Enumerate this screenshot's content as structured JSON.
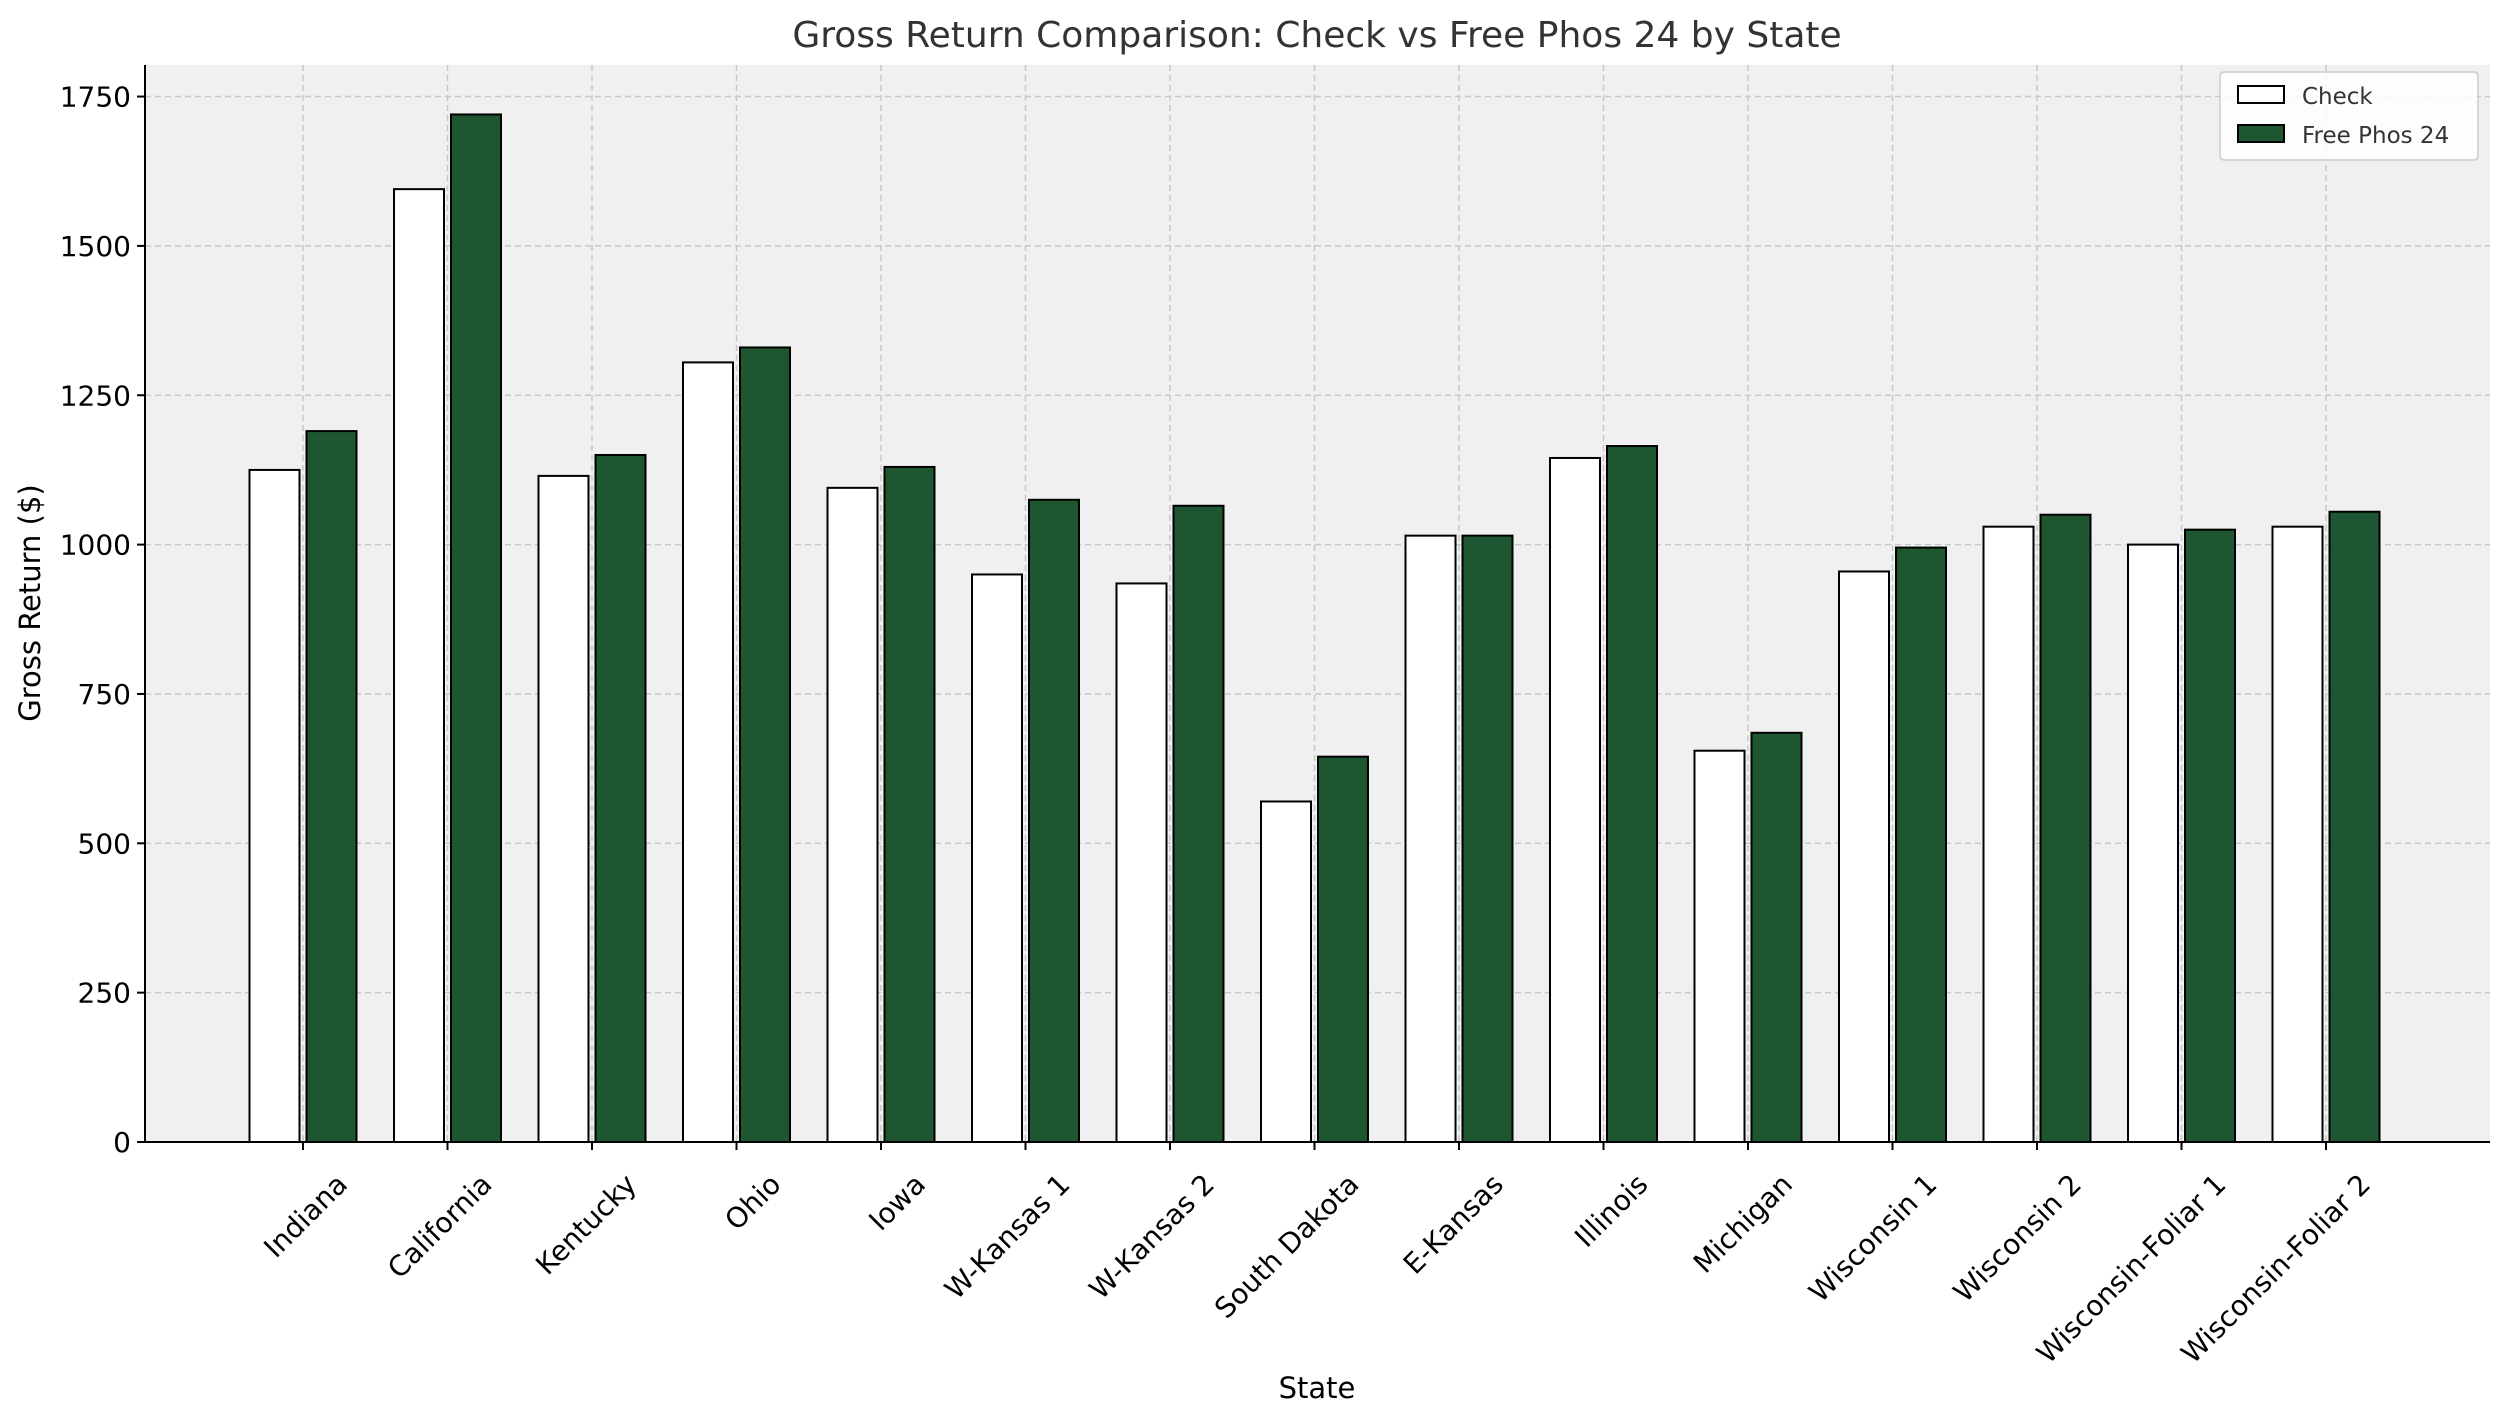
{
  "chart_data": {
    "type": "bar",
    "title": "Gross Return Comparison: Check vs Free Phos 24 by State",
    "xlabel": "State",
    "ylabel": "Gross Return ($)",
    "ylim": [
      0,
      1810
    ],
    "yticks": [
      0,
      250,
      500,
      750,
      1000,
      1250,
      1500,
      1750
    ],
    "grid": true,
    "legend_position": "top-right",
    "categories": [
      "Indiana",
      "California",
      "Kentucky",
      "Ohio",
      "Iowa",
      "W-Kansas 1",
      "W-Kansas 2",
      "South Dakota",
      "E-Kansas",
      "Illinois",
      "Michigan",
      "Wisconsin 1",
      "Wisconsin 2",
      "Wisconsin-Foliar 1",
      "Wisconsin-Foliar 2"
    ],
    "series": [
      {
        "name": "Check",
        "color": "#ffffff",
        "values": [
          1125,
          1595,
          1115,
          1305,
          1095,
          950,
          935,
          570,
          1015,
          1145,
          655,
          955,
          1030,
          1000,
          1030
        ]
      },
      {
        "name": "Free Phos 24",
        "color": "#1e5631",
        "values": [
          1190,
          1720,
          1150,
          1330,
          1130,
          1075,
          1065,
          645,
          1015,
          1165,
          685,
          995,
          1050,
          1025,
          1055
        ]
      }
    ],
    "colors": {
      "plot_background": "#f0f0f0",
      "grid": "#c8c8c8",
      "bar_edge": "#000000"
    }
  }
}
